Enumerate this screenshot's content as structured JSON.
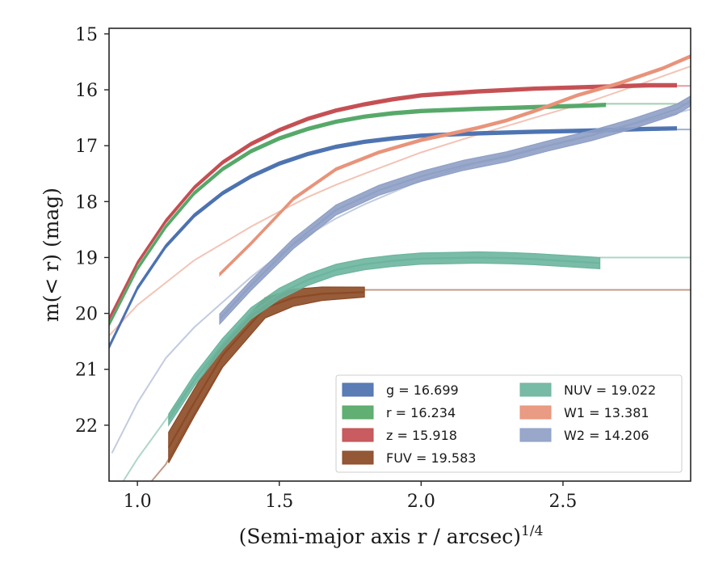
{
  "chart_data": {
    "type": "line",
    "xlabel": "(Semi-major axis r / arcsec)",
    "xlabel_exponent": "1/4",
    "ylabel": "m(< r) (mag)",
    "xlim": [
      0.9,
      2.95
    ],
    "ylim": [
      23.0,
      14.9
    ],
    "y_inverted": true,
    "grid": false,
    "legend_position": "lower-right",
    "xticks": [
      1.0,
      1.5,
      2.0,
      2.5
    ],
    "xtick_labels": [
      "1.0",
      "1.5",
      "2.0",
      "2.5"
    ],
    "yticks": [
      15,
      16,
      17,
      18,
      19,
      20,
      21,
      22
    ],
    "ytick_labels": [
      "15",
      "16",
      "17",
      "18",
      "19",
      "20",
      "21",
      "22"
    ],
    "series": [
      {
        "name": "g = 16.699",
        "color": "#4c72b0",
        "band": 0.06,
        "asymptote": 16.71,
        "x": [
          0.9,
          1.0,
          1.1,
          1.2,
          1.3,
          1.4,
          1.5,
          1.6,
          1.7,
          1.8,
          1.9,
          2.0,
          2.2,
          2.4,
          2.6,
          2.8,
          2.9
        ],
        "y": [
          20.6,
          19.55,
          18.8,
          18.25,
          17.85,
          17.55,
          17.32,
          17.15,
          17.02,
          16.93,
          16.87,
          16.82,
          16.78,
          16.75,
          16.73,
          16.7,
          16.69
        ]
      },
      {
        "name": "r = 16.234",
        "color": "#55a868",
        "band": 0.06,
        "asymptote": 16.25,
        "x": [
          0.9,
          1.0,
          1.1,
          1.2,
          1.3,
          1.4,
          1.5,
          1.6,
          1.7,
          1.8,
          1.9,
          2.0,
          2.2,
          2.4,
          2.6,
          2.65
        ],
        "y": [
          20.2,
          19.2,
          18.45,
          17.85,
          17.42,
          17.1,
          16.87,
          16.7,
          16.57,
          16.48,
          16.42,
          16.38,
          16.34,
          16.31,
          16.28,
          16.27
        ]
      },
      {
        "name": "z = 15.918",
        "color": "#c44e52",
        "band": 0.06,
        "asymptote": 15.93,
        "x": [
          0.9,
          1.0,
          1.1,
          1.2,
          1.3,
          1.4,
          1.5,
          1.6,
          1.7,
          1.8,
          1.9,
          2.0,
          2.2,
          2.4,
          2.6,
          2.8,
          2.9
        ],
        "y": [
          20.1,
          19.1,
          18.35,
          17.75,
          17.3,
          16.97,
          16.72,
          16.52,
          16.37,
          16.26,
          16.17,
          16.1,
          16.03,
          15.98,
          15.95,
          15.92,
          15.92
        ]
      },
      {
        "name": "FUV = 19.583",
        "color": "#8c4a25",
        "band": 0.55,
        "band_min": 0.18,
        "asymptote": 19.58,
        "x": [
          1.11,
          1.2,
          1.3,
          1.45,
          1.55,
          1.65,
          1.8
        ],
        "y": [
          22.4,
          21.6,
          20.75,
          19.9,
          19.72,
          19.65,
          19.62
        ]
      },
      {
        "name": "NUV = 19.022",
        "color": "#6bb59e",
        "band": 0.2,
        "asymptote": 19.0,
        "x": [
          1.11,
          1.2,
          1.3,
          1.4,
          1.5,
          1.6,
          1.7,
          1.8,
          1.9,
          2.0,
          2.1,
          2.2,
          2.3,
          2.4,
          2.5,
          2.63
        ],
        "y": [
          21.9,
          21.2,
          20.55,
          20.0,
          19.65,
          19.4,
          19.22,
          19.12,
          19.06,
          19.02,
          19.01,
          19.0,
          19.01,
          19.03,
          19.06,
          19.1
        ]
      },
      {
        "name": "W1 = 13.381",
        "color": "#e8937a",
        "band": 0.05,
        "asymptote": 15.4,
        "x": [
          1.29,
          1.4,
          1.55,
          1.7,
          1.85,
          2.0,
          2.2,
          2.3,
          2.4,
          2.55,
          2.7,
          2.85,
          2.95
        ],
        "y": [
          19.3,
          18.75,
          17.95,
          17.42,
          17.12,
          16.9,
          16.68,
          16.55,
          16.38,
          16.1,
          15.88,
          15.62,
          15.4
        ]
      },
      {
        "name": "W2 = 14.206",
        "color": "#8fa0c5",
        "band": 0.18,
        "asymptote": 16.2,
        "x": [
          1.29,
          1.4,
          1.55,
          1.7,
          1.85,
          2.0,
          2.15,
          2.3,
          2.45,
          2.6,
          2.75,
          2.9,
          2.95
        ],
        "y": [
          20.1,
          19.5,
          18.75,
          18.15,
          17.8,
          17.55,
          17.35,
          17.2,
          17.0,
          16.82,
          16.6,
          16.35,
          16.2
        ]
      }
    ],
    "faint_curves": [
      {
        "color": "#e8937a",
        "x": [
          0.9,
          1.0,
          1.1,
          1.2,
          1.3,
          1.4,
          1.5,
          1.6,
          1.7,
          1.8,
          2.0,
          2.2,
          2.4,
          2.6,
          2.8,
          2.95
        ],
        "y": [
          20.4,
          19.85,
          19.45,
          19.05,
          18.75,
          18.45,
          18.18,
          17.92,
          17.7,
          17.5,
          17.12,
          16.8,
          16.5,
          16.2,
          15.85,
          15.58
        ]
      },
      {
        "color": "#8fa0c5",
        "x": [
          0.91,
          1.0,
          1.1,
          1.2,
          1.3,
          1.4,
          1.5,
          1.6,
          1.7,
          1.8,
          2.0,
          2.2,
          2.4,
          2.6,
          2.8,
          2.95
        ],
        "y": [
          22.5,
          21.6,
          20.8,
          20.25,
          19.8,
          19.35,
          18.95,
          18.6,
          18.3,
          18.05,
          17.62,
          17.3,
          17.05,
          16.8,
          16.55,
          16.35
        ]
      },
      {
        "color": "#6bb59e",
        "x": [
          0.95,
          1.0,
          1.1,
          1.2,
          1.3
        ],
        "y": [
          23.0,
          22.6,
          21.9,
          21.2,
          20.6
        ]
      },
      {
        "color": "#8c4a25",
        "x": [
          1.05,
          1.1,
          1.2,
          1.3
        ],
        "y": [
          23.0,
          22.7,
          21.8,
          20.95
        ]
      }
    ],
    "legend": [
      {
        "label": "g = 16.699",
        "color": "#4c72b0"
      },
      {
        "label": "r = 16.234",
        "color": "#55a868"
      },
      {
        "label": "z = 15.918",
        "color": "#c44e52"
      },
      {
        "label": "FUV = 19.583",
        "color": "#8c4a25"
      },
      {
        "label": "NUV = 19.022",
        "color": "#6bb59e"
      },
      {
        "label": "W1 = 13.381",
        "color": "#e8937a"
      },
      {
        "label": "W2 = 14.206",
        "color": "#8fa0c5"
      }
    ]
  }
}
